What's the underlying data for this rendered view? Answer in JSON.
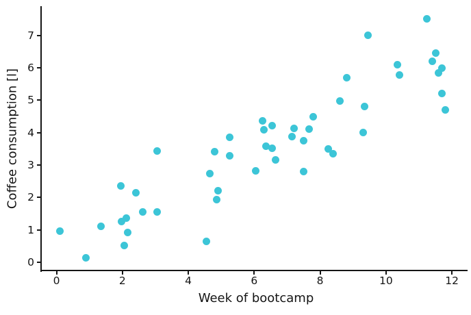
{
  "chart_data": {
    "type": "scatter",
    "title": "",
    "xlabel": "Week of bootcamp",
    "ylabel": "Coffee consumption [l]",
    "xlim": [
      -0.47,
      12.58
    ],
    "ylim": [
      -0.25,
      7.88
    ],
    "x_ticks": [
      0,
      2,
      4,
      6,
      8,
      10,
      12
    ],
    "y_ticks": [
      0,
      1,
      2,
      3,
      4,
      5,
      6,
      7
    ],
    "grid": false,
    "legend": null,
    "marker_color": "#3cc5d7",
    "marker_size_px": 11,
    "spine_color": "#151515",
    "points": [
      [
        0.1,
        0.97
      ],
      [
        0.9,
        0.15
      ],
      [
        1.35,
        1.12
      ],
      [
        1.95,
        2.35
      ],
      [
        1.97,
        1.27
      ],
      [
        2.05,
        0.53
      ],
      [
        2.12,
        1.37
      ],
      [
        2.15,
        0.93
      ],
      [
        2.4,
        2.15
      ],
      [
        2.62,
        1.56
      ],
      [
        3.05,
        1.55
      ],
      [
        3.05,
        3.43
      ],
      [
        4.55,
        0.65
      ],
      [
        4.65,
        2.74
      ],
      [
        4.8,
        3.41
      ],
      [
        4.85,
        1.94
      ],
      [
        4.9,
        2.2
      ],
      [
        5.25,
        3.85
      ],
      [
        5.25,
        3.28
      ],
      [
        6.05,
        2.82
      ],
      [
        6.25,
        4.36
      ],
      [
        6.3,
        4.08
      ],
      [
        6.35,
        3.59
      ],
      [
        6.55,
        4.21
      ],
      [
        6.55,
        3.51
      ],
      [
        6.65,
        3.15
      ],
      [
        7.15,
        3.88
      ],
      [
        7.2,
        4.14
      ],
      [
        7.5,
        3.75
      ],
      [
        7.5,
        2.81
      ],
      [
        7.67,
        4.11
      ],
      [
        7.8,
        4.5
      ],
      [
        8.25,
        3.49
      ],
      [
        8.4,
        3.35
      ],
      [
        8.6,
        4.98
      ],
      [
        8.8,
        5.7
      ],
      [
        9.3,
        4.0
      ],
      [
        9.35,
        4.8
      ],
      [
        9.45,
        7.0
      ],
      [
        10.35,
        6.1
      ],
      [
        10.4,
        5.78
      ],
      [
        11.25,
        7.5
      ],
      [
        11.4,
        6.2
      ],
      [
        11.5,
        6.45
      ],
      [
        11.6,
        5.85
      ],
      [
        11.7,
        6.0
      ],
      [
        11.7,
        5.2
      ],
      [
        11.8,
        4.7
      ]
    ]
  }
}
